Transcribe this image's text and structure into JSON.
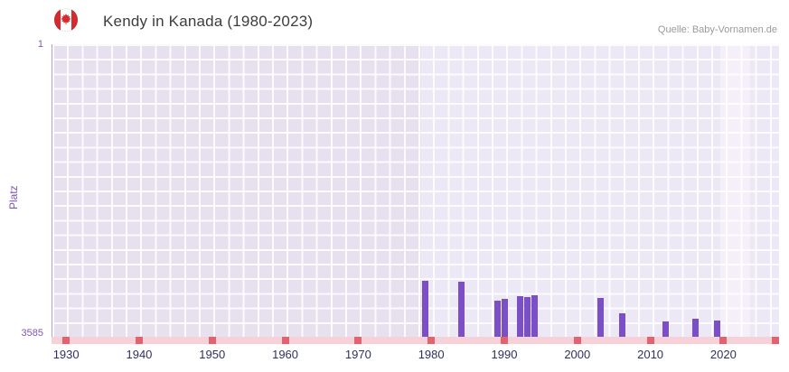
{
  "header": {
    "title": "Kendy in Kanada (1980-2023)",
    "source": "Quelle: Baby-Vornamen.de"
  },
  "icons": {
    "flag": "canada-flag-icon"
  },
  "axes": {
    "y_label": "Platz",
    "y_top_tick": "1",
    "y_bottom_tick": "3585",
    "x_ticks": [
      "1930",
      "1940",
      "1950",
      "1960",
      "1970",
      "1980",
      "1990",
      "2000",
      "2010",
      "2020"
    ]
  },
  "chart_data": {
    "type": "bar",
    "title": "Kendy in Kanada (1980-2023)",
    "xlabel": "",
    "ylabel": "Platz",
    "y_axis_inverted": true,
    "ylim": [
      1,
      3585
    ],
    "x_range_years": [
      1928,
      2027.5
    ],
    "x_tick_years": [
      1930,
      1940,
      1950,
      1960,
      1970,
      1980,
      1990,
      2000,
      2010,
      2020
    ],
    "grid": true,
    "legend": false,
    "points": [
      {
        "year": 1979,
        "rank": 2900
      },
      {
        "year": 1984,
        "rank": 2910
      },
      {
        "year": 1989,
        "rank": 3140
      },
      {
        "year": 1990,
        "rank": 3120
      },
      {
        "year": 1992,
        "rank": 3090
      },
      {
        "year": 1993,
        "rank": 3100
      },
      {
        "year": 1994,
        "rank": 3080
      },
      {
        "year": 2003,
        "rank": 3110
      },
      {
        "year": 2006,
        "rank": 3300
      },
      {
        "year": 2012,
        "rank": 3400
      },
      {
        "year": 2016,
        "rank": 3360
      },
      {
        "year": 2019,
        "rank": 3390
      }
    ],
    "bands": [
      {
        "name": "band-data-range",
        "from": 1978.5,
        "to": 2027.5,
        "color": "#ede8f5"
      },
      {
        "name": "band-recent-years",
        "from": 2019.5,
        "to": 2023.5,
        "color": "#f4eff9"
      }
    ],
    "colors": {
      "bar": "#7b50c7",
      "plot_background": "#e6e0ef",
      "axis_accent": "#8a63c0",
      "x_label": "#30305e",
      "strip": "#f6d1d8",
      "strip_tick": "#e2626e"
    }
  }
}
